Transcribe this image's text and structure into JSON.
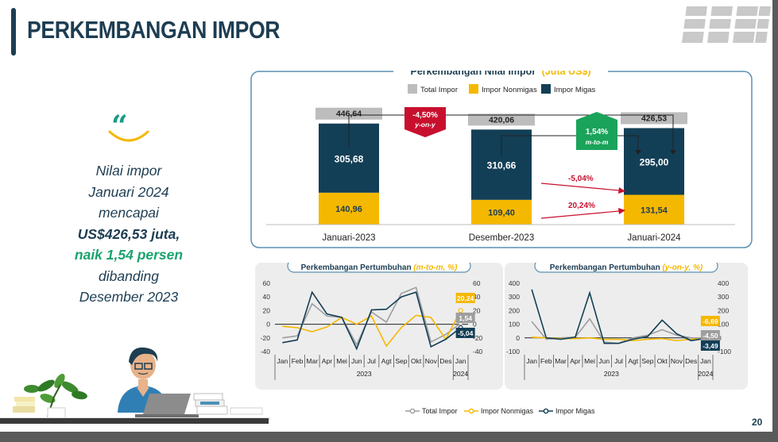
{
  "page": {
    "title": "PERKEMBANGAN IMPOR",
    "page_number": "20"
  },
  "quote": {
    "mark": "“",
    "line1": "Nilai impor",
    "line2": "Januari 2024",
    "line3": "mencapai",
    "line4": "US$426,53 juta,",
    "line5": "naik 1,54 persen",
    "line6": "dibanding",
    "line7": "Desember 2023"
  },
  "legend": {
    "total": "Total Impor",
    "nonmigas": "Impor Nonmigas",
    "migas": "Impor Migas"
  },
  "colors": {
    "total": "#bdbdbd",
    "nonmigas": "#f5b800",
    "migas": "#133f56",
    "down_badge": "#c8102e",
    "up_badge": "#1aa35a",
    "accent_blue": "#1d3d52"
  },
  "chart_data": [
    {
      "type": "bar",
      "stacked": true,
      "title": "Perkembangan Nilai Impor",
      "title_unit": "(Juta US$)",
      "categories": [
        "Januari-2023",
        "Desember-2023",
        "Januari-2024"
      ],
      "series": [
        {
          "name": "Impor Nonmigas",
          "values": [
            140.96,
            109.4,
            131.54
          ],
          "labels": [
            "140,96",
            "109,40",
            "131,54"
          ]
        },
        {
          "name": "Impor Migas",
          "values": [
            305.68,
            310.66,
            295.0
          ],
          "labels": [
            "305,68",
            "310,66",
            "295,00"
          ]
        }
      ],
      "totals": {
        "name": "Total Impor",
        "values": [
          446.64,
          420.06,
          426.53
        ],
        "labels": [
          "446,64",
          "420,06",
          "426,53"
        ]
      },
      "annotations": {
        "yoy": {
          "value": "-4,50%",
          "label": "y-on-y"
        },
        "mtm": {
          "value": "1,54%",
          "label": "m-to-m"
        },
        "migas_change": "-5,04%",
        "nonmigas_change": "20,24%"
      }
    },
    {
      "type": "line",
      "title": "Perkembangan Pertumbuhan",
      "title_unit": "(m-to-m, %)",
      "x": [
        "Jan",
        "Feb",
        "Mar",
        "Apr",
        "Mei",
        "Jun",
        "Jul",
        "Agt",
        "Sep",
        "Okt",
        "Nov",
        "Des",
        "Jan"
      ],
      "year_labels": [
        "2023",
        "2024"
      ],
      "ylim": [
        -40,
        60
      ],
      "yticks": [
        "60",
        "40",
        "20",
        "0",
        "-20",
        "-40"
      ],
      "series": [
        {
          "name": "Total Impor",
          "values": [
            -20,
            -17,
            30,
            12,
            10,
            -30,
            18,
            3,
            45,
            54,
            -26,
            -15,
            1.54
          ],
          "end_label": "1,54"
        },
        {
          "name": "Impor Nonmigas",
          "values": [
            -3,
            -5,
            -11,
            -4,
            10,
            0,
            12,
            -32,
            -5,
            13,
            10,
            -22,
            20.24
          ],
          "end_label": "20,24"
        },
        {
          "name": "Impor Migas",
          "values": [
            -27,
            -23,
            47,
            15,
            10,
            -36,
            21,
            22,
            40,
            47,
            -33,
            -22,
            -5.04
          ],
          "end_label": "-5,04"
        }
      ]
    },
    {
      "type": "line",
      "title": "Perkembangan Pertumbuhan",
      "title_unit": "(y-on-y, %)",
      "x": [
        "Jan",
        "Feb",
        "Mar",
        "Apr",
        "Mei",
        "Jun",
        "Jul",
        "Agt",
        "Sep",
        "Okt",
        "Nov",
        "Des",
        "Jan"
      ],
      "year_labels": [
        "2023",
        "2024"
      ],
      "ylim": [
        -100,
        400
      ],
      "yticks": [
        "400",
        "300",
        "200",
        "100",
        "0",
        "-100"
      ],
      "series": [
        {
          "name": "Total Impor",
          "values": [
            120,
            -10,
            0,
            5,
            140,
            -30,
            -40,
            0,
            20,
            60,
            20,
            0,
            -4.5
          ],
          "end_label": "-4,50"
        },
        {
          "name": "Impor Nonmigas",
          "values": [
            5,
            0,
            -5,
            -5,
            0,
            -10,
            -10,
            -20,
            -10,
            -5,
            -20,
            -10,
            -6.69
          ],
          "end_label": "-6,69"
        },
        {
          "name": "Impor Migas",
          "values": [
            355,
            0,
            -10,
            5,
            330,
            -40,
            -40,
            -10,
            10,
            130,
            30,
            -20,
            -3.49
          ],
          "end_label": "-3,49"
        }
      ]
    }
  ]
}
